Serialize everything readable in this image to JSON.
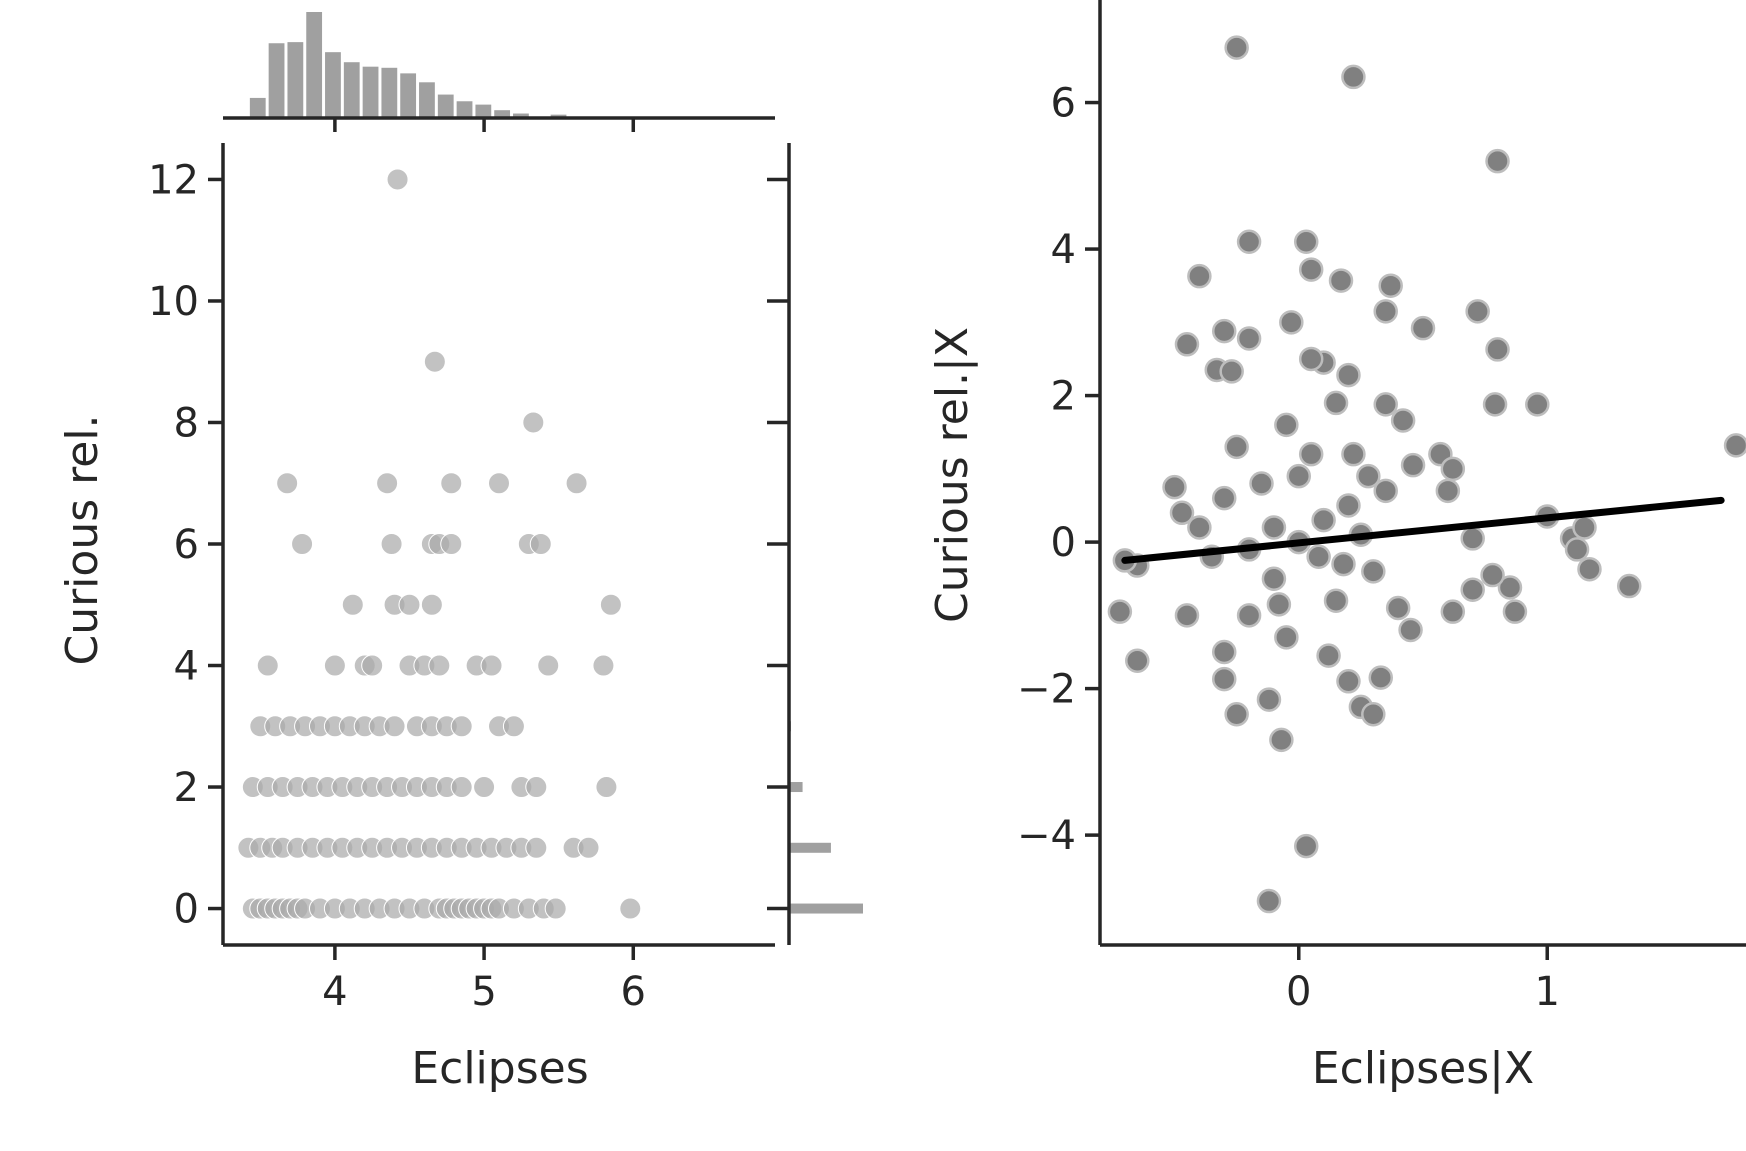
{
  "chart_data": [
    {
      "type": "scatter",
      "panel": "joint",
      "xlabel": "Eclipses",
      "ylabel": "Curious rel.",
      "xlim": [
        3.25,
        6.95
      ],
      "ylim": [
        -0.6,
        12.6
      ],
      "x_ticks": [
        4,
        5,
        6
      ],
      "x_tick_labels": [
        "4",
        "5",
        "6"
      ],
      "y_ticks": [
        0,
        2,
        4,
        6,
        8,
        10,
        12
      ],
      "y_tick_labels": [
        "0",
        "2",
        "4",
        "6",
        "8",
        "10",
        "12"
      ],
      "grid": false,
      "color": "#aaaaaa",
      "marginal_x_histogram": {
        "bin_start": 3.42,
        "bin_width": 0.126,
        "counts": [
          18,
          67,
          68,
          95,
          59,
          50,
          46,
          45,
          40,
          32,
          21,
          15,
          12,
          7,
          4,
          0,
          3
        ]
      },
      "marginal_y_histogram": {
        "bins": [
          0,
          1,
          2,
          3
        ],
        "counts": [
          300,
          170,
          55,
          8
        ]
      },
      "points": [
        [
          3.45,
          0
        ],
        [
          3.5,
          0
        ],
        [
          3.55,
          0
        ],
        [
          3.6,
          0
        ],
        [
          3.65,
          0
        ],
        [
          3.7,
          0
        ],
        [
          3.75,
          0
        ],
        [
          3.8,
          0
        ],
        [
          3.9,
          0
        ],
        [
          4.0,
          0
        ],
        [
          4.1,
          0
        ],
        [
          4.2,
          0
        ],
        [
          4.3,
          0
        ],
        [
          4.4,
          0
        ],
        [
          4.5,
          0
        ],
        [
          4.6,
          0
        ],
        [
          4.7,
          0
        ],
        [
          4.75,
          0
        ],
        [
          4.8,
          0
        ],
        [
          4.85,
          0
        ],
        [
          4.9,
          0
        ],
        [
          4.95,
          0
        ],
        [
          5.0,
          0
        ],
        [
          5.05,
          0
        ],
        [
          5.1,
          0
        ],
        [
          5.2,
          0
        ],
        [
          5.3,
          0
        ],
        [
          5.4,
          0
        ],
        [
          5.48,
          0
        ],
        [
          5.98,
          0
        ],
        [
          3.42,
          1
        ],
        [
          3.5,
          1
        ],
        [
          3.58,
          1
        ],
        [
          3.65,
          1
        ],
        [
          3.75,
          1
        ],
        [
          3.85,
          1
        ],
        [
          3.95,
          1
        ],
        [
          4.05,
          1
        ],
        [
          4.15,
          1
        ],
        [
          4.25,
          1
        ],
        [
          4.35,
          1
        ],
        [
          4.45,
          1
        ],
        [
          4.55,
          1
        ],
        [
          4.65,
          1
        ],
        [
          4.75,
          1
        ],
        [
          4.85,
          1
        ],
        [
          4.95,
          1
        ],
        [
          5.05,
          1
        ],
        [
          5.15,
          1
        ],
        [
          5.25,
          1
        ],
        [
          5.35,
          1
        ],
        [
          5.6,
          1
        ],
        [
          5.7,
          1
        ],
        [
          3.45,
          2
        ],
        [
          3.55,
          2
        ],
        [
          3.65,
          2
        ],
        [
          3.75,
          2
        ],
        [
          3.85,
          2
        ],
        [
          3.95,
          2
        ],
        [
          4.05,
          2
        ],
        [
          4.15,
          2
        ],
        [
          4.25,
          2
        ],
        [
          4.35,
          2
        ],
        [
          4.45,
          2
        ],
        [
          4.55,
          2
        ],
        [
          4.65,
          2
        ],
        [
          4.75,
          2
        ],
        [
          4.85,
          2
        ],
        [
          5.0,
          2
        ],
        [
          5.25,
          2
        ],
        [
          5.35,
          2
        ],
        [
          5.82,
          2
        ],
        [
          3.5,
          3
        ],
        [
          3.6,
          3
        ],
        [
          3.7,
          3
        ],
        [
          3.8,
          3
        ],
        [
          3.9,
          3
        ],
        [
          4.0,
          3
        ],
        [
          4.1,
          3
        ],
        [
          4.2,
          3
        ],
        [
          4.3,
          3
        ],
        [
          4.4,
          3
        ],
        [
          4.55,
          3
        ],
        [
          4.65,
          3
        ],
        [
          4.75,
          3
        ],
        [
          4.85,
          3
        ],
        [
          5.1,
          3
        ],
        [
          5.2,
          3
        ],
        [
          3.55,
          4
        ],
        [
          4.0,
          4
        ],
        [
          4.2,
          4
        ],
        [
          4.25,
          4
        ],
        [
          4.5,
          4
        ],
        [
          4.6,
          4
        ],
        [
          4.7,
          4
        ],
        [
          4.95,
          4
        ],
        [
          5.05,
          4
        ],
        [
          5.43,
          4
        ],
        [
          5.8,
          4
        ],
        [
          4.12,
          5
        ],
        [
          4.4,
          5
        ],
        [
          4.5,
          5
        ],
        [
          4.65,
          5
        ],
        [
          5.85,
          5
        ],
        [
          3.78,
          6
        ],
        [
          4.38,
          6
        ],
        [
          4.65,
          6
        ],
        [
          4.7,
          6
        ],
        [
          4.78,
          6
        ],
        [
          5.3,
          6
        ],
        [
          5.38,
          6
        ],
        [
          3.68,
          7
        ],
        [
          4.35,
          7
        ],
        [
          4.78,
          7
        ],
        [
          5.1,
          7
        ],
        [
          5.62,
          7
        ],
        [
          5.33,
          8
        ],
        [
          4.67,
          9
        ],
        [
          4.42,
          12
        ]
      ]
    },
    {
      "type": "scatter",
      "panel": "partial-regression",
      "xlabel": "Eclipses|X",
      "ylabel": "Curious rel.|X",
      "xlim": [
        -0.8,
        1.8
      ],
      "ylim": [
        -5.5,
        7.4
      ],
      "x_ticks": [
        0,
        1
      ],
      "x_tick_labels": [
        "0",
        "1"
      ],
      "y_ticks": [
        -4,
        -2,
        0,
        2,
        4,
        6
      ],
      "y_tick_labels": [
        "−4",
        "−2",
        "0",
        "2",
        "4",
        "6"
      ],
      "grid": false,
      "color": "#808080",
      "regression_line": {
        "x": [
          -0.7,
          1.7
        ],
        "y": [
          -0.25,
          0.57
        ],
        "color": "#000000"
      },
      "points": [
        [
          -0.25,
          6.75
        ],
        [
          0.22,
          6.35
        ],
        [
          0.8,
          5.2
        ],
        [
          -0.2,
          4.1
        ],
        [
          0.03,
          4.1
        ],
        [
          0.05,
          3.72
        ],
        [
          -0.4,
          3.63
        ],
        [
          0.17,
          3.57
        ],
        [
          0.37,
          3.5
        ],
        [
          0.72,
          3.15
        ],
        [
          0.35,
          3.15
        ],
        [
          -0.03,
          3.0
        ],
        [
          0.5,
          2.92
        ],
        [
          -0.3,
          2.88
        ],
        [
          -0.2,
          2.78
        ],
        [
          0.8,
          2.63
        ],
        [
          -0.45,
          2.7
        ],
        [
          -0.33,
          2.35
        ],
        [
          -0.27,
          2.33
        ],
        [
          0.2,
          2.28
        ],
        [
          0.35,
          1.88
        ],
        [
          0.42,
          1.66
        ],
        [
          0.79,
          1.88
        ],
        [
          0.96,
          1.88
        ],
        [
          1.76,
          1.32
        ],
        [
          1.0,
          0.35
        ],
        [
          1.1,
          0.05
        ],
        [
          1.15,
          0.2
        ],
        [
          1.12,
          -0.1
        ],
        [
          1.17,
          -0.37
        ],
        [
          1.33,
          -0.6
        ],
        [
          0.85,
          -0.62
        ],
        [
          0.87,
          -0.95
        ],
        [
          0.62,
          -0.95
        ],
        [
          0.7,
          -0.65
        ],
        [
          0.78,
          -0.45
        ],
        [
          0.7,
          0.05
        ],
        [
          0.57,
          1.2
        ],
        [
          0.6,
          0.7
        ],
        [
          0.62,
          1.0
        ],
        [
          0.46,
          1.05
        ],
        [
          -0.5,
          0.75
        ],
        [
          -0.47,
          0.4
        ],
        [
          -0.65,
          -0.32
        ],
        [
          -0.7,
          -0.25
        ],
        [
          -0.72,
          -0.95
        ],
        [
          -0.65,
          -1.62
        ],
        [
          -0.3,
          -1.87
        ],
        [
          -0.25,
          -2.35
        ],
        [
          -0.12,
          -2.15
        ],
        [
          -0.07,
          -2.7
        ],
        [
          0.2,
          -1.9
        ],
        [
          0.25,
          -2.25
        ],
        [
          0.3,
          -2.35
        ],
        [
          0.33,
          -1.85
        ],
        [
          0.03,
          -4.15
        ],
        [
          -0.12,
          -4.9
        ],
        [
          -0.3,
          -1.5
        ],
        [
          -0.2,
          -1.0
        ],
        [
          -0.1,
          -0.5
        ],
        [
          0.0,
          0.0
        ],
        [
          0.1,
          0.3
        ],
        [
          0.2,
          0.5
        ],
        [
          -0.15,
          0.8
        ],
        [
          0.05,
          1.2
        ],
        [
          -0.05,
          1.6
        ],
        [
          0.15,
          1.9
        ],
        [
          0.25,
          0.1
        ],
        [
          0.3,
          -0.4
        ],
        [
          -0.35,
          -0.2
        ],
        [
          -0.4,
          0.2
        ],
        [
          0.15,
          -0.8
        ],
        [
          -0.1,
          0.2
        ],
        [
          0.08,
          -0.2
        ],
        [
          0.4,
          -0.9
        ],
        [
          -0.25,
          1.3
        ],
        [
          0.1,
          2.45
        ],
        [
          0.05,
          2.5
        ],
        [
          -0.3,
          0.6
        ],
        [
          0.45,
          -1.2
        ],
        [
          -0.45,
          -1.0
        ],
        [
          0.35,
          0.7
        ],
        [
          -0.05,
          -1.3
        ],
        [
          0.12,
          -1.55
        ],
        [
          0.22,
          1.2
        ],
        [
          -0.2,
          -0.1
        ],
        [
          0.0,
          0.9
        ],
        [
          0.18,
          -0.3
        ],
        [
          -0.08,
          -0.85
        ],
        [
          0.28,
          0.9
        ]
      ]
    }
  ]
}
